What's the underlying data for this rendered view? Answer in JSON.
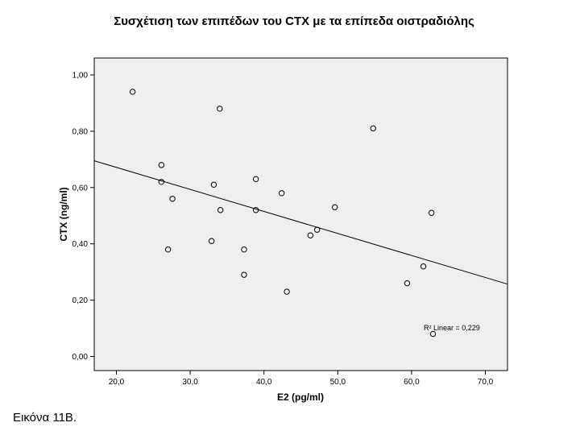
{
  "figure": {
    "caption": "Εικόνα 11Β."
  },
  "chart_data": {
    "type": "scatter",
    "title": "Συσχέτιση των επιπέδων του CTX με τα επίπεδα οιστραδιόλης",
    "xlabel": "E2 (pg/ml)",
    "ylabel": "CTX (ng/ml)",
    "xlim": [
      17,
      73
    ],
    "ylim": [
      -0.05,
      1.06
    ],
    "xticks": [
      20,
      30,
      40,
      50,
      60,
      70
    ],
    "xtick_labels": [
      "20,0",
      "30,0",
      "40,0",
      "50,0",
      "60,0",
      "70,0"
    ],
    "yticks": [
      0,
      0.2,
      0.4,
      0.6,
      0.8,
      1.0
    ],
    "ytick_labels": [
      "0,00",
      "0,20",
      "0,40",
      "0,60",
      "0,80",
      "1,00"
    ],
    "grid": false,
    "background_color": "#efefef",
    "marker": "open-circle",
    "series": [
      {
        "points": [
          {
            "x": 22.2,
            "y": 0.94
          },
          {
            "x": 34.0,
            "y": 0.88
          },
          {
            "x": 54.8,
            "y": 0.81
          },
          {
            "x": 26.1,
            "y": 0.68
          },
          {
            "x": 26.1,
            "y": 0.62
          },
          {
            "x": 33.2,
            "y": 0.61
          },
          {
            "x": 38.9,
            "y": 0.63
          },
          {
            "x": 42.4,
            "y": 0.58
          },
          {
            "x": 27.6,
            "y": 0.56
          },
          {
            "x": 34.1,
            "y": 0.52
          },
          {
            "x": 38.9,
            "y": 0.52
          },
          {
            "x": 49.6,
            "y": 0.53
          },
          {
            "x": 62.7,
            "y": 0.51
          },
          {
            "x": 47.2,
            "y": 0.45
          },
          {
            "x": 46.3,
            "y": 0.43
          },
          {
            "x": 32.9,
            "y": 0.41
          },
          {
            "x": 27.0,
            "y": 0.38
          },
          {
            "x": 37.3,
            "y": 0.38
          },
          {
            "x": 61.6,
            "y": 0.32
          },
          {
            "x": 37.3,
            "y": 0.29
          },
          {
            "x": 59.4,
            "y": 0.26
          },
          {
            "x": 43.1,
            "y": 0.23
          },
          {
            "x": 62.9,
            "y": 0.08
          }
        ]
      }
    ],
    "fit_line": {
      "type": "linear",
      "x": [
        17,
        73
      ],
      "y": [
        0.695,
        0.257
      ],
      "annotation": "R² Linear = 0,229"
    }
  }
}
